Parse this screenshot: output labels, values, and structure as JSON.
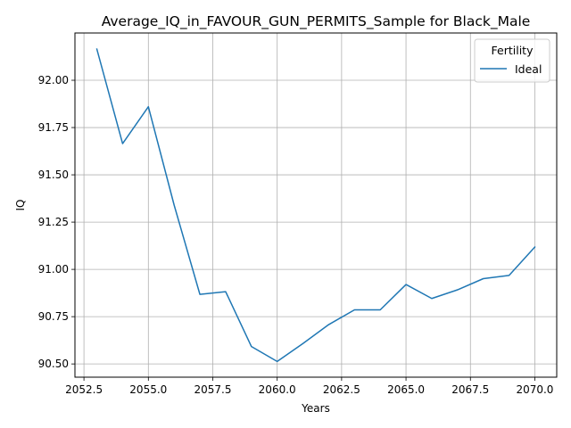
{
  "chart_data": {
    "type": "line",
    "title": "Average_IQ_in_FAVOUR_GUN_PERMITS_Sample for Black_Male",
    "xlabel": "Years",
    "ylabel": "IQ",
    "xlim": [
      2052.15,
      2070.85
    ],
    "ylim": [
      90.43,
      92.25
    ],
    "x_ticks": [
      2052.5,
      2055.0,
      2057.5,
      2060.0,
      2062.5,
      2065.0,
      2067.5,
      2070.0
    ],
    "x_tick_labels": [
      "2052.5",
      "2055.0",
      "2057.5",
      "2060.0",
      "2062.5",
      "2065.0",
      "2067.5",
      "2070.0"
    ],
    "y_ticks": [
      90.5,
      90.75,
      91.0,
      91.25,
      91.5,
      91.75,
      92.0
    ],
    "y_tick_labels": [
      "90.50",
      "90.75",
      "91.00",
      "91.25",
      "91.50",
      "91.75",
      "92.00"
    ],
    "grid": true,
    "legend": {
      "title": "Fertility",
      "placement": "top-right"
    },
    "series": [
      {
        "name": "Ideal",
        "color": "#1f77b4",
        "x": [
          2053,
          2054,
          2055,
          2056,
          2057,
          2058,
          2059,
          2060,
          2061,
          2062,
          2063,
          2064,
          2065,
          2066,
          2067,
          2068,
          2069,
          2070
        ],
        "y": [
          92.165,
          91.665,
          91.86,
          91.34,
          90.868,
          90.882,
          90.592,
          90.513,
          90.608,
          90.708,
          90.786,
          90.786,
          90.92,
          90.846,
          90.892,
          90.951,
          90.968,
          91.118
        ]
      }
    ]
  }
}
